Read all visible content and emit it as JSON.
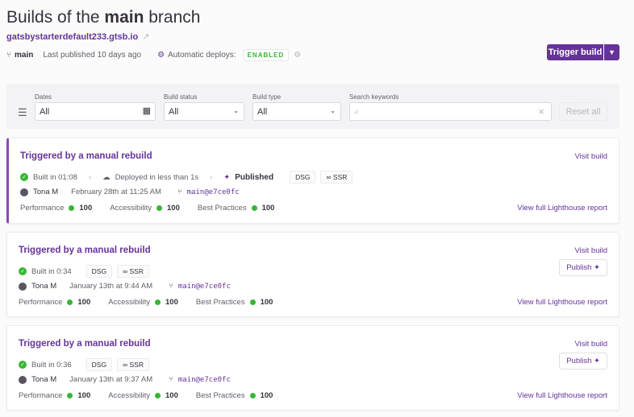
{
  "header": {
    "title_pre": "Builds of the ",
    "title_branch": "main",
    "title_post": " branch",
    "site_link": "gatsbystarterdefault233.gtsb.io",
    "branch": "main",
    "last_published": "Last published 10 days ago",
    "auto_deploys_label": "Automatic deploys:",
    "auto_deploys_status": "ENABLED",
    "trigger_label": "Trigger build"
  },
  "filters": {
    "dates_label": "Dates",
    "dates_value": "All",
    "status_label": "Build status",
    "status_value": "All",
    "type_label": "Build type",
    "type_value": "All",
    "search_label": "Search keywords",
    "search_placeholder": "",
    "reset_label": "Reset all"
  },
  "builds": [
    {
      "title": "Triggered by a manual rebuild",
      "built": "Built in 01:08",
      "deployed": "Deployed in less than 1s",
      "published": "Published",
      "tags": [
        "DSG",
        "SSR"
      ],
      "author": "Tona M",
      "date": "February 28th at 11:25 AM",
      "commit": "main@e7ce0fc",
      "scores": [
        {
          "label": "Performance",
          "value": "100"
        },
        {
          "label": "Accessibility",
          "value": "100"
        },
        {
          "label": "Best Practices",
          "value": "100"
        }
      ],
      "visit": "Visit build",
      "report": "View full Lighthouse report"
    },
    {
      "title": "Triggered by a manual rebuild",
      "built": "Built in 0:34",
      "tags": [
        "DSG",
        "SSR"
      ],
      "author": "Tona M",
      "date": "January 13th at 9:44 AM",
      "commit": "main@e7ce0fc",
      "scores": [
        {
          "label": "Performance",
          "value": "100"
        },
        {
          "label": "Accessibility",
          "value": "100"
        },
        {
          "label": "Best Practices",
          "value": "100"
        }
      ],
      "visit": "Visit build",
      "publish": "Publish",
      "report": "View full Lighthouse report"
    },
    {
      "title": "Triggered by a manual rebuild",
      "built": "Built in 0:36",
      "tags": [
        "DSG",
        "SSR"
      ],
      "author": "Tona M",
      "date": "January 13th at 9:37 AM",
      "commit": "main@e7ce0fc",
      "scores": [
        {
          "label": "Performance",
          "value": "100"
        },
        {
          "label": "Accessibility",
          "value": "100"
        },
        {
          "label": "Best Practices",
          "value": "100"
        }
      ],
      "visit": "Visit build",
      "publish": "Publish",
      "report": "View full Lighthouse report"
    }
  ],
  "colors": {
    "brand": "#663399",
    "success": "#37b635"
  }
}
